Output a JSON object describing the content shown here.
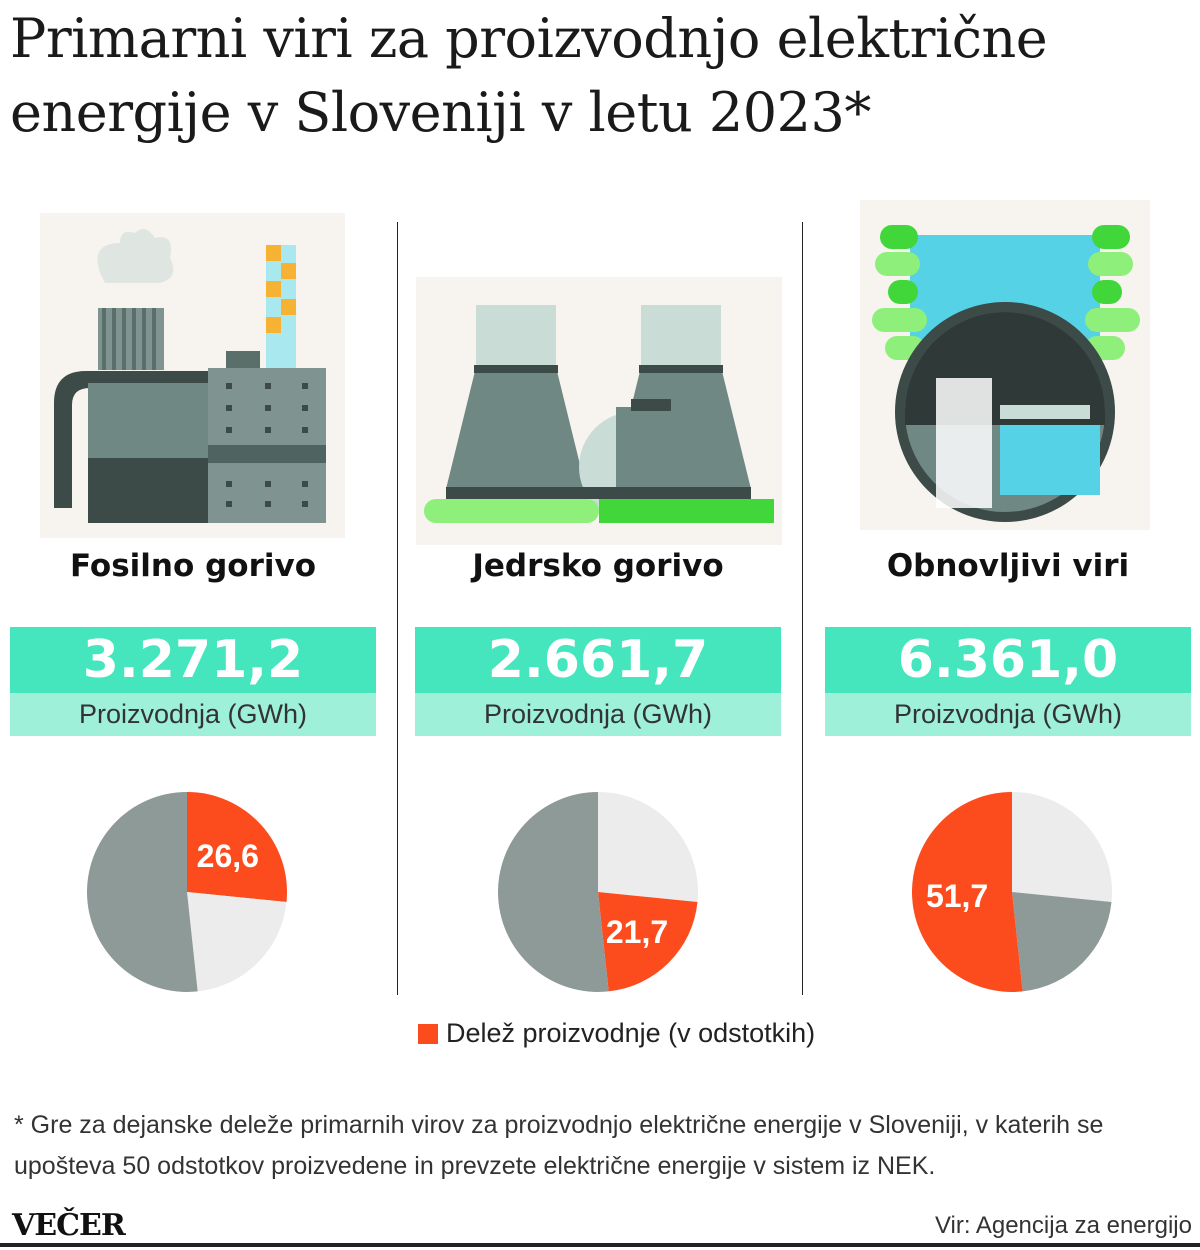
{
  "title": "Primarni viri za proizvodnjo električne energije v Sloveniji v letu 2023*",
  "columns": [
    {
      "name": "Fosilno gorivo",
      "value": "3.271,2",
      "unit": "Proizvodnja (GWh)",
      "share_label": "26,6",
      "icon": "fossil-power-plant-icon"
    },
    {
      "name": "Jedrsko gorivo",
      "value": "2.661,7",
      "unit": "Proizvodnja (GWh)",
      "share_label": "21,7",
      "icon": "nuclear-power-plant-icon"
    },
    {
      "name": "Obnovljivi viri",
      "value": "6.361,0",
      "unit": "Proizvodnja (GWh)",
      "share_label": "51,7",
      "icon": "hydro-power-plant-icon"
    }
  ],
  "legend": "Delež proizvodnje (v odstotkih)",
  "footnote": "* Gre za dejanske deleže primarnih virov za proizvodnjo električne energije v Sloveniji, v katerih se upošteva 50 odstotkov proizvedene in prevzete električne energije v sistem iz NEK.",
  "logo": "VEČER",
  "source": "Vir: Agencija za energijo",
  "colors": {
    "highlight": "#fc4c1d",
    "light": "#ebeceb",
    "dark": "#8d9a98",
    "value_box": "#45e6bd",
    "unit_box": "#9ef0d9"
  },
  "chart_data": {
    "type": "pie",
    "title": "Delež proizvodnje (v odstotkih)",
    "categories": [
      "Fosilno gorivo",
      "Jedrsko gorivo",
      "Obnovljivi viri"
    ],
    "values": [
      26.6,
      21.7,
      51.7
    ],
    "production_gwh": [
      3271.2,
      2661.7,
      6361.0
    ],
    "highlight_per_chart": [
      "Fosilno gorivo",
      "Jedrsko gorivo",
      "Obnovljivi viri"
    ],
    "legend_position": "bottom-center"
  }
}
